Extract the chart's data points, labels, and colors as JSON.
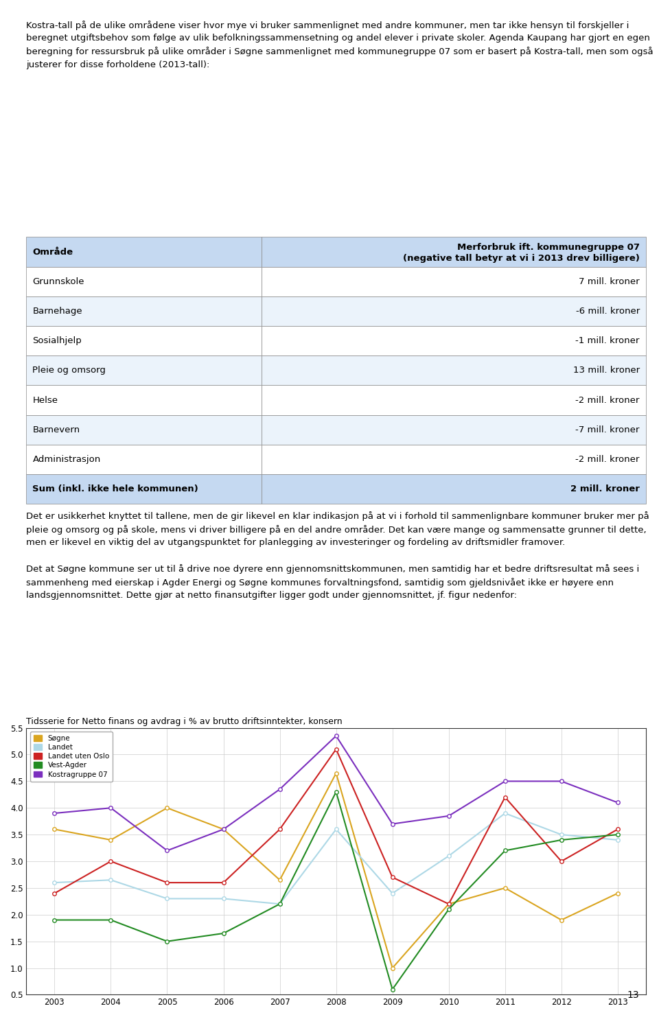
{
  "intro_text": "Kostra-tall på de ulike områdene viser hvor mye vi bruker sammenlignet med andre kommuner, men tar ikke hensyn til forskjeller i beregnet utgiftsbehov som følge av ulik befolkningssammensetning og andel elever i private skoler. Agenda Kaupang har gjort en egen beregning for ressursbruk på ulike områder i Søgne sammenlignet med kommunegruppe 07 som er basert på Kostra-tall, men som også justerer for disse forholdene (2013-tall):",
  "table_header_col1": "Område",
  "table_header_col2": "Merforbruk ift. kommunegruppe 07\n(negative tall betyr at vi i 2013 drev billigere)",
  "table_rows": [
    [
      "Grunnskole",
      "7 mill. kroner"
    ],
    [
      "Barnehage",
      "-6 mill. kroner"
    ],
    [
      "Sosialhjelp",
      "-1 mill. kroner"
    ],
    [
      "Pleie og omsorg",
      "13 mill. kroner"
    ],
    [
      "Helse",
      "-2 mill. kroner"
    ],
    [
      "Barnevern",
      "-7 mill. kroner"
    ],
    [
      "Administrasjon",
      "-2 mill. kroner"
    ]
  ],
  "table_sum_row": [
    "Sum (inkl. ikke hele kommunen)",
    "2 mill. kroner"
  ],
  "body_text1": "Det er usikkerhet knyttet til tallene, men de gir likevel en klar indikasjon på at vi i forhold til sammenlignbare kommuner bruker mer på pleie og omsorg og på skole, mens vi driver billigere på en del andre områder. Det kan være mange og sammensatte grunner til dette, men er likevel en viktig del av utgangspunktet for planlegging av investeringer og fordeling av driftsmidler framover.",
  "body_text2": "Det at Søgne kommune ser ut til å drive noe dyrere enn gjennomsnittskommunen, men samtidig har et bedre driftsresultat må sees i sammenheng med eierskap i Agder Energi og Søgne kommunes forvaltningsfond, samtidig som gjeldsnivået ikke er høyere enn landsgjennomsnittet. Dette gjør at netto finansutgifter ligger godt under gjennomsnittet, jf. figur nedenfor:",
  "chart_title": "Tidsserie for Netto finans og avdrag i % av brutto driftsinntekter, konsern",
  "years": [
    2003,
    2004,
    2005,
    2006,
    2007,
    2008,
    2009,
    2010,
    2011,
    2012,
    2013
  ],
  "series": {
    "Søgne": {
      "color": "#DAA520",
      "values": [
        3.6,
        3.4,
        4.0,
        3.6,
        2.65,
        4.65,
        1.0,
        2.2,
        2.5,
        1.9,
        2.4
      ],
      "marker": "o"
    },
    "Landet": {
      "color": "#ADD8E6",
      "values": [
        2.6,
        2.65,
        2.3,
        2.3,
        2.2,
        3.6,
        2.4,
        3.1,
        3.9,
        3.5,
        3.4
      ],
      "marker": "o"
    },
    "Landet uten Oslo": {
      "color": "#CC2222",
      "values": [
        2.4,
        3.0,
        2.6,
        2.6,
        3.6,
        5.1,
        2.7,
        2.2,
        4.2,
        3.0,
        3.6
      ],
      "marker": "o"
    },
    "Vest-Agder": {
      "color": "#228B22",
      "values": [
        1.9,
        1.9,
        1.5,
        1.65,
        2.2,
        4.3,
        0.6,
        2.1,
        3.2,
        3.4,
        3.5
      ],
      "marker": "o"
    },
    "Kostragruppe 07": {
      "color": "#7B2FBE",
      "values": [
        3.9,
        4.0,
        3.2,
        3.6,
        4.35,
        5.35,
        3.7,
        3.85,
        4.5,
        4.5,
        4.1
      ],
      "marker": "o"
    }
  },
  "ylim": [
    0.5,
    5.5
  ],
  "yticks": [
    0.5,
    1.0,
    1.5,
    2.0,
    2.5,
    3.0,
    3.5,
    4.0,
    4.5,
    5.0,
    5.5
  ],
  "header_bg": "#C5D9F1",
  "row_bg_even": "#FFFFFF",
  "row_bg_odd": "#EBF3FB",
  "sum_row_bg": "#C5D9F1",
  "page_number": "13",
  "background_color": "#FFFFFF"
}
